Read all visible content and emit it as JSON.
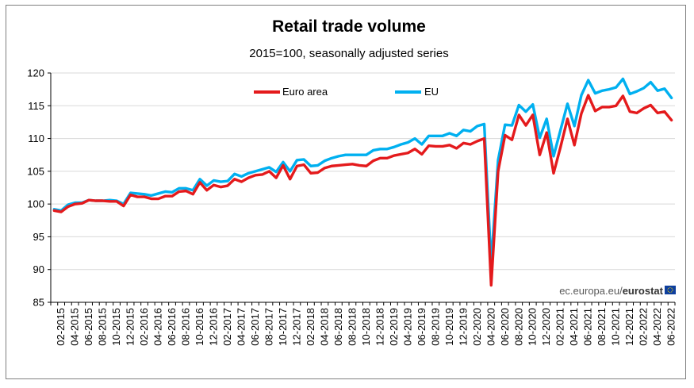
{
  "chart_data": {
    "type": "line",
    "title": "Retail trade volume",
    "subtitle": "2015=100, seasonally adjusted series",
    "xlabel": "",
    "ylabel": "",
    "ylim": [
      85,
      120
    ],
    "yticks": [
      85,
      90,
      95,
      100,
      105,
      110,
      115,
      120
    ],
    "grid": true,
    "legend_position": "top-center",
    "credit_prefix": "ec.europa.eu/",
    "credit_brand": "eurostat",
    "x_tick_labels": [
      "02-2015",
      "04-2015",
      "06-2015",
      "08-2015",
      "10-2015",
      "12-2015",
      "02-2016",
      "04-2016",
      "06-2016",
      "08-2016",
      "10-2016",
      "12-2016",
      "02-2017",
      "04-2017",
      "06-2017",
      "08-2017",
      "10-2017",
      "12-2017",
      "02-2018",
      "04-2018",
      "06-2018",
      "08-2018",
      "10-2018",
      "12-2018",
      "02-2019",
      "04-2019",
      "06-2019",
      "08-2019",
      "10-2019",
      "12-2019",
      "02-2020",
      "04-2020",
      "06-2020",
      "08-2020",
      "10-2020",
      "12-2020",
      "02-2021",
      "04-2021",
      "06-2021",
      "08-2021",
      "10-2021",
      "12-2021",
      "02-2022",
      "04-2022",
      "06-2022"
    ],
    "x": [
      "01-2015",
      "02-2015",
      "03-2015",
      "04-2015",
      "05-2015",
      "06-2015",
      "07-2015",
      "08-2015",
      "09-2015",
      "10-2015",
      "11-2015",
      "12-2015",
      "01-2016",
      "02-2016",
      "03-2016",
      "04-2016",
      "05-2016",
      "06-2016",
      "07-2016",
      "08-2016",
      "09-2016",
      "10-2016",
      "11-2016",
      "12-2016",
      "01-2017",
      "02-2017",
      "03-2017",
      "04-2017",
      "05-2017",
      "06-2017",
      "07-2017",
      "08-2017",
      "09-2017",
      "10-2017",
      "11-2017",
      "12-2017",
      "01-2018",
      "02-2018",
      "03-2018",
      "04-2018",
      "05-2018",
      "06-2018",
      "07-2018",
      "08-2018",
      "09-2018",
      "10-2018",
      "11-2018",
      "12-2018",
      "01-2019",
      "02-2019",
      "03-2019",
      "04-2019",
      "05-2019",
      "06-2019",
      "07-2019",
      "08-2019",
      "09-2019",
      "10-2019",
      "11-2019",
      "12-2019",
      "01-2020",
      "02-2020",
      "03-2020",
      "04-2020",
      "05-2020",
      "06-2020",
      "07-2020",
      "08-2020",
      "09-2020",
      "10-2020",
      "11-2020",
      "12-2020",
      "01-2021",
      "02-2021",
      "03-2021",
      "04-2021",
      "05-2021",
      "06-2021",
      "07-2021",
      "08-2021",
      "09-2021",
      "10-2021",
      "11-2021",
      "12-2021",
      "01-2022",
      "02-2022",
      "03-2022",
      "04-2022",
      "05-2022",
      "06-2022"
    ],
    "series": [
      {
        "name": "Euro area",
        "color": "#e41a1c",
        "values": [
          99.0,
          98.8,
          99.6,
          100.0,
          100.1,
          100.6,
          100.5,
          100.5,
          100.4,
          100.4,
          99.7,
          101.4,
          101.1,
          101.1,
          100.8,
          100.8,
          101.2,
          101.2,
          101.9,
          102.0,
          101.5,
          103.3,
          102.1,
          102.9,
          102.6,
          102.8,
          103.8,
          103.4,
          104.0,
          104.4,
          104.5,
          105.0,
          104.0,
          105.9,
          103.8,
          105.8,
          106.0,
          104.7,
          104.8,
          105.5,
          105.8,
          105.9,
          106.0,
          106.1,
          105.9,
          105.8,
          106.6,
          107.0,
          107.0,
          107.4,
          107.6,
          107.8,
          108.4,
          107.6,
          108.9,
          108.8,
          108.8,
          109.0,
          108.5,
          109.3,
          109.1,
          109.6,
          110.0,
          87.6,
          105.0,
          110.5,
          109.8,
          113.6,
          112.0,
          113.6,
          107.5,
          110.9,
          104.7,
          108.7,
          113.0,
          109.0,
          113.8,
          116.6,
          114.2,
          114.8,
          114.8,
          115.0,
          116.5,
          114.1,
          113.9,
          114.6,
          115.1,
          113.9,
          114.1,
          112.8
        ]
      },
      {
        "name": "EU",
        "color": "#00b0f0",
        "values": [
          99.2,
          99.0,
          99.9,
          100.2,
          100.2,
          100.6,
          100.5,
          100.5,
          100.6,
          100.5,
          100.0,
          101.7,
          101.6,
          101.5,
          101.3,
          101.6,
          101.9,
          101.8,
          102.4,
          102.4,
          102.1,
          103.8,
          102.8,
          103.6,
          103.4,
          103.5,
          104.6,
          104.2,
          104.7,
          105.0,
          105.3,
          105.6,
          104.9,
          106.4,
          105.0,
          106.7,
          106.8,
          105.8,
          105.9,
          106.6,
          107.0,
          107.3,
          107.5,
          107.5,
          107.5,
          107.5,
          108.2,
          108.4,
          108.4,
          108.7,
          109.1,
          109.4,
          110.0,
          109.1,
          110.4,
          110.4,
          110.4,
          110.8,
          110.4,
          111.3,
          111.1,
          111.9,
          112.2,
          90.8,
          106.7,
          112.1,
          112.0,
          115.1,
          114.1,
          115.2,
          110.1,
          113.0,
          107.3,
          111.3,
          115.3,
          111.9,
          116.6,
          118.9,
          116.9,
          117.3,
          117.5,
          117.8,
          119.1,
          116.8,
          117.2,
          117.7,
          118.6,
          117.3,
          117.6,
          116.2
        ]
      }
    ]
  }
}
